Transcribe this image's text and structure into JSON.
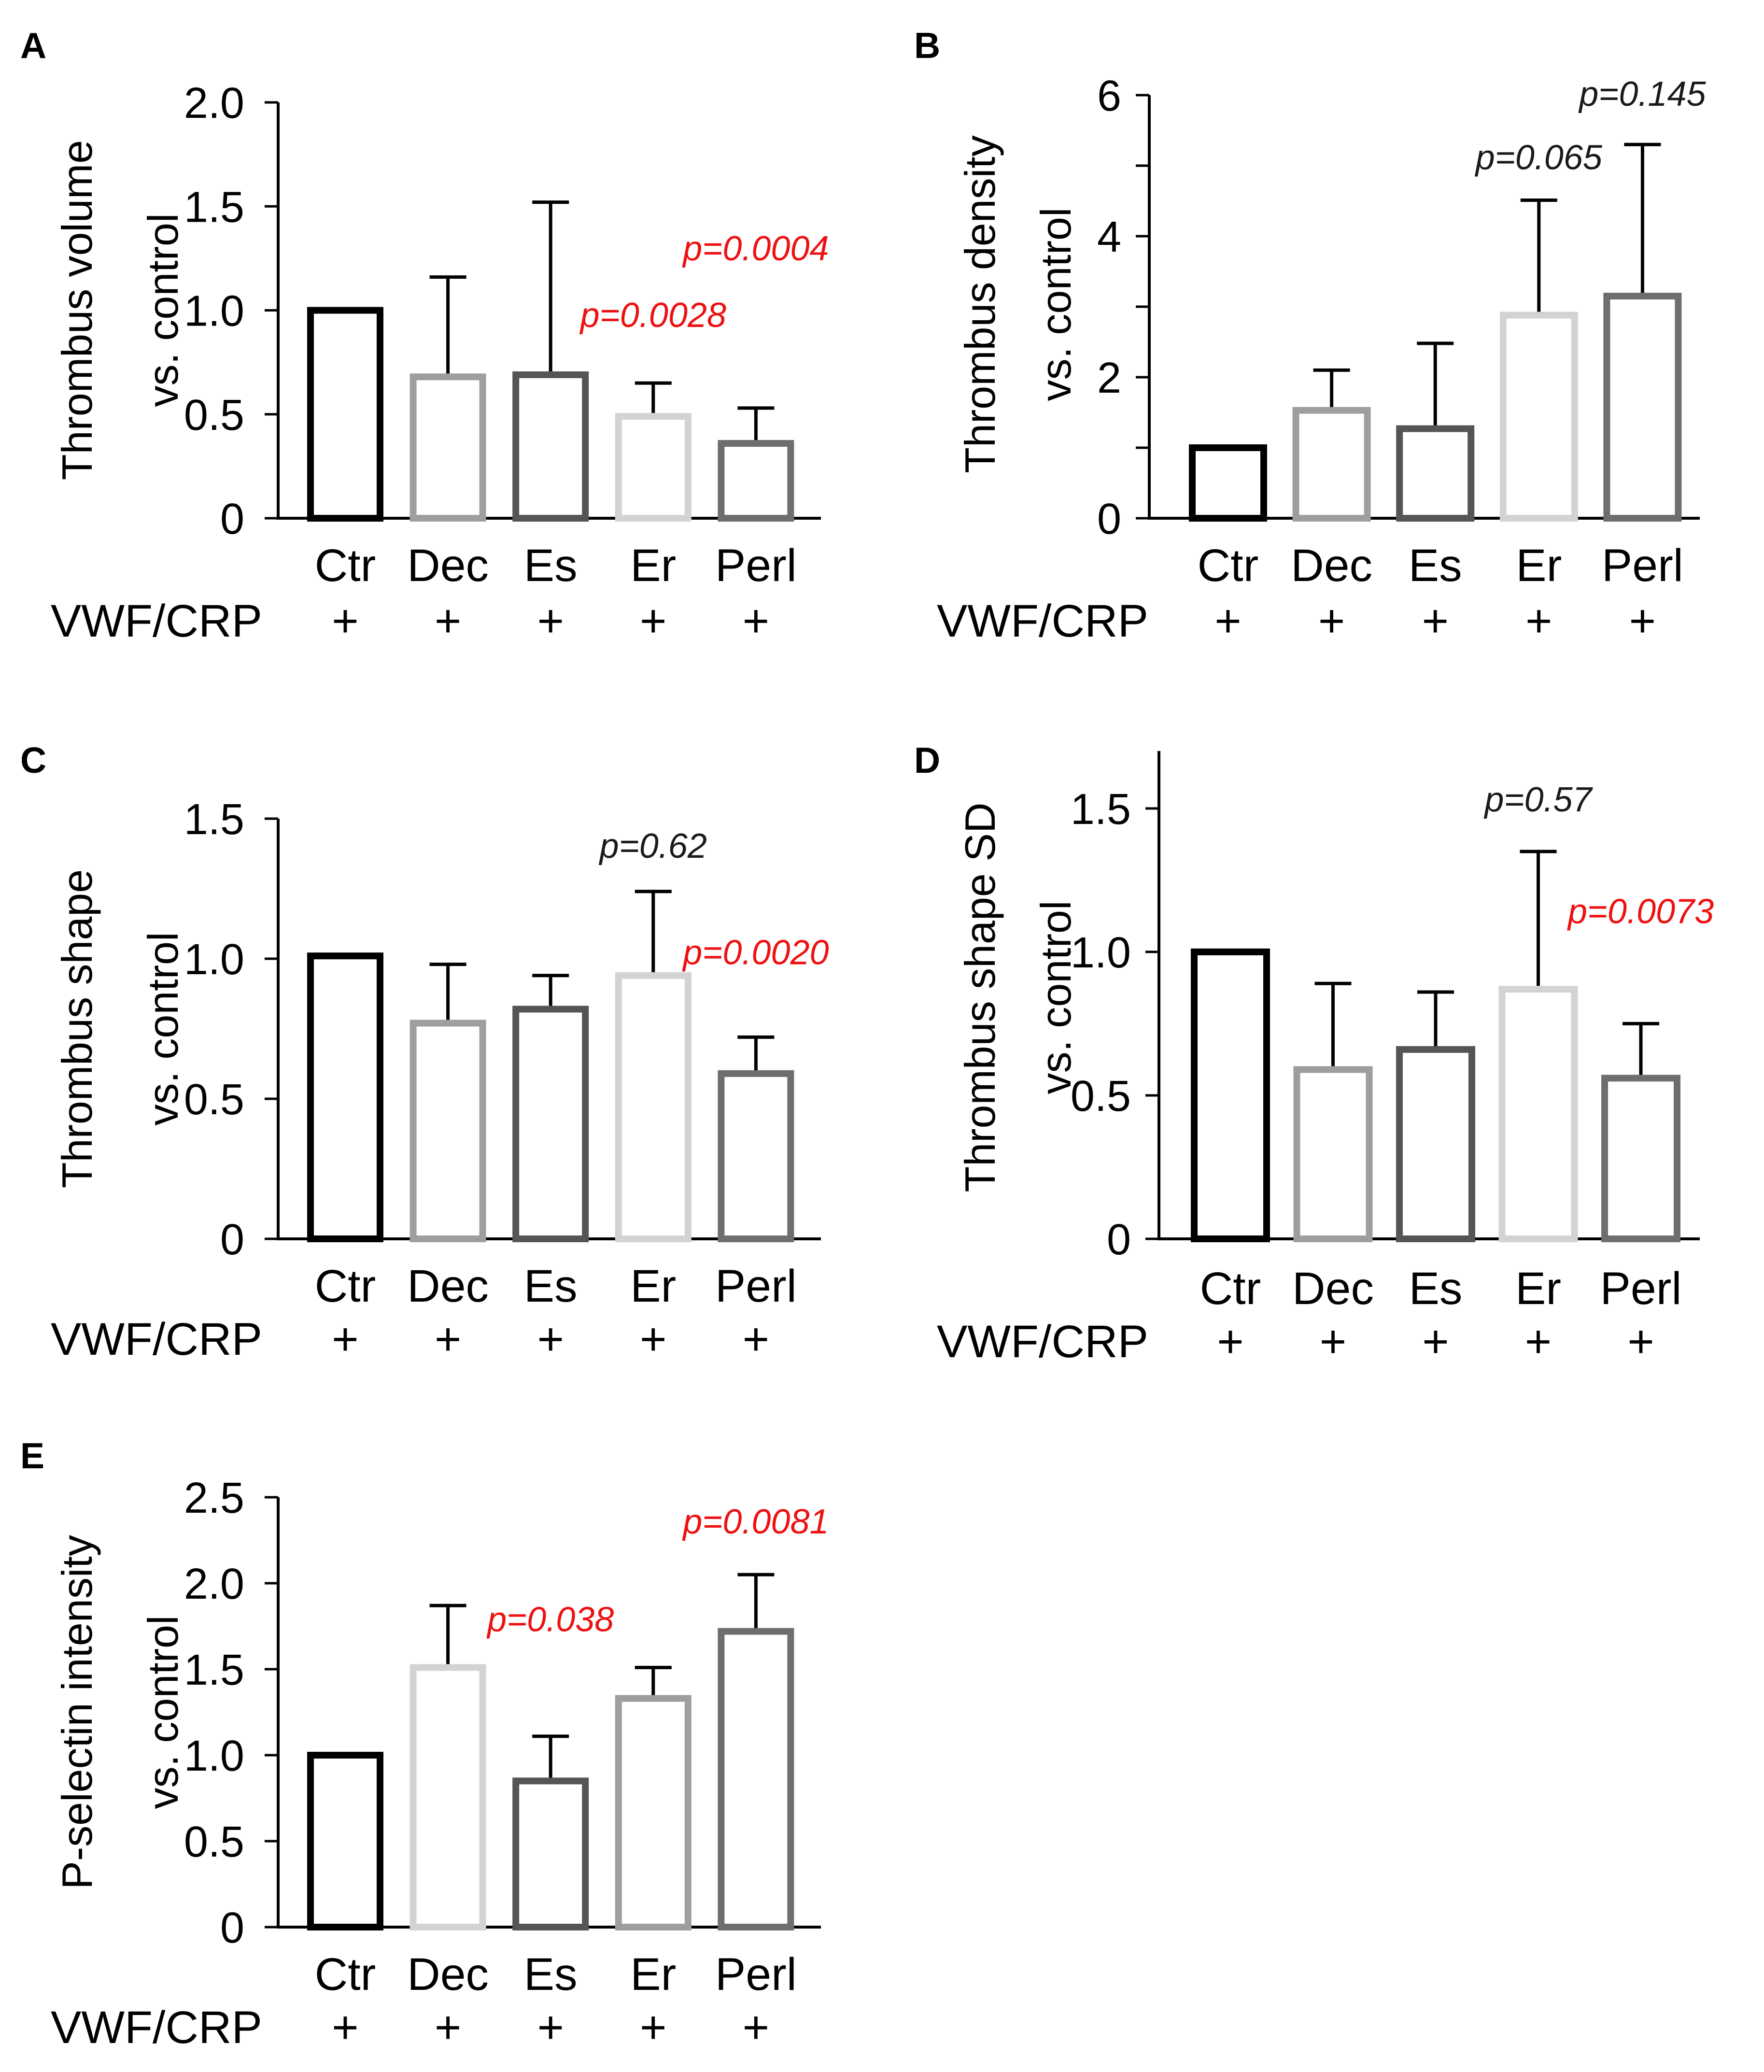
{
  "figure": {
    "treatment_label": "VWF/CRP",
    "treatment_mark": "+"
  },
  "chart_data": [
    {
      "panel": "A",
      "type": "bar",
      "ylabel": [
        "Thrombus volume",
        "vs. control"
      ],
      "categories": [
        "Ctr",
        "Dec",
        "Es",
        "Er",
        "Perl"
      ],
      "values": [
        1.0,
        0.68,
        0.69,
        0.49,
        0.36
      ],
      "errors": [
        0,
        0.48,
        0.83,
        0.16,
        0.17
      ],
      "ylim": [
        0,
        2.0
      ],
      "yticks": [
        0,
        0.5,
        1.0,
        1.5,
        2.0
      ],
      "ytick_labels": [
        "0",
        "0.5",
        "1.0",
        "1.5",
        "2.0"
      ],
      "bar_colors": [
        "#000000",
        "#9e9e9e",
        "#555555",
        "#d3d3d3",
        "#6e6e6e"
      ],
      "annotations": [
        {
          "text": "p=0.0028",
          "color": "#ee1111",
          "category": "Er",
          "y": 0.92
        },
        {
          "text": "p=0.0004",
          "color": "#ee1111",
          "category": "Perl",
          "y": 1.24
        }
      ]
    },
    {
      "panel": "B",
      "type": "bar",
      "ylabel": [
        "Thrombus density",
        "vs. control"
      ],
      "categories": [
        "Ctr",
        "Dec",
        "Es",
        "Er",
        "Perl"
      ],
      "values": [
        1.0,
        1.53,
        1.27,
        2.88,
        3.15
      ],
      "errors": [
        0,
        0.57,
        1.21,
        1.63,
        2.15
      ],
      "ylim": [
        0,
        6
      ],
      "yticks": [
        0,
        1,
        2,
        3,
        4,
        5,
        6
      ],
      "ytick_labels": [
        "0",
        "",
        "2",
        "",
        "4",
        "",
        "6"
      ],
      "bar_colors": [
        "#000000",
        "#9e9e9e",
        "#555555",
        "#d3d3d3",
        "#6e6e6e"
      ],
      "annotations": [
        {
          "text": "p=0.065",
          "color": "#1a1a1a",
          "category": "Er",
          "y": 4.95
        },
        {
          "text": "p=0.145",
          "color": "#1a1a1a",
          "category": "Perl",
          "y": 5.85
        }
      ]
    },
    {
      "panel": "C",
      "type": "bar",
      "ylabel": [
        "Thrombus shape",
        "vs. control"
      ],
      "categories": [
        "Ctr",
        "Dec",
        "Es",
        "Er",
        "Perl"
      ],
      "values": [
        1.01,
        0.77,
        0.82,
        0.94,
        0.59
      ],
      "errors": [
        0,
        0.21,
        0.12,
        0.3,
        0.13
      ],
      "ylim": [
        0,
        1.5
      ],
      "yticks": [
        0,
        0.5,
        1.0,
        1.5
      ],
      "ytick_labels": [
        "0",
        "0.5",
        "1.0",
        "1.5"
      ],
      "bar_colors": [
        "#000000",
        "#9e9e9e",
        "#555555",
        "#d3d3d3",
        "#6e6e6e"
      ],
      "annotations": [
        {
          "text": "p=0.62",
          "color": "#1a1a1a",
          "category": "Er",
          "y": 1.36
        },
        {
          "text": "p=0.0020",
          "color": "#ee1111",
          "category": "Perl",
          "y": 0.98
        }
      ]
    },
    {
      "panel": "D",
      "type": "bar",
      "ylabel": [
        "Thrombus shape SD",
        "vs. control"
      ],
      "categories": [
        "Ctr",
        "Dec",
        "Es",
        "Er",
        "Perl"
      ],
      "values": [
        1.0,
        0.59,
        0.66,
        0.87,
        0.56
      ],
      "errors": [
        0,
        0.3,
        0.2,
        0.48,
        0.19
      ],
      "ylim": [
        0,
        1.7
      ],
      "yticks": [
        0,
        0.5,
        1.0,
        1.5
      ],
      "ytick_labels": [
        "0",
        "0.5",
        "1.0",
        "1.5"
      ],
      "bar_colors": [
        "#000000",
        "#9e9e9e",
        "#555555",
        "#d3d3d3",
        "#6e6e6e"
      ],
      "annotations": [
        {
          "text": "p=0.57",
          "color": "#1a1a1a",
          "category": "Er",
          "y": 1.49
        },
        {
          "text": "p=0.0073",
          "color": "#ee1111",
          "category": "Perl",
          "y": 1.1
        }
      ]
    },
    {
      "panel": "E",
      "type": "bar",
      "ylabel": [
        "P-selectin intensity",
        "vs. control"
      ],
      "categories": [
        "Ctr",
        "Dec",
        "Es",
        "Er",
        "Perl"
      ],
      "values": [
        1.0,
        1.51,
        0.85,
        1.33,
        1.72
      ],
      "errors": [
        0,
        0.36,
        0.26,
        0.18,
        0.33
      ],
      "ylim": [
        0,
        2.5
      ],
      "yticks": [
        0,
        0.5,
        1.0,
        1.5,
        2.0,
        2.5
      ],
      "ytick_labels": [
        "0",
        "0.5",
        "1.0",
        "1.5",
        "2.0",
        "2.5"
      ],
      "bar_colors": [
        "#000000",
        "#d3d3d3",
        "#555555",
        "#9e9e9e",
        "#6e6e6e"
      ],
      "annotations": [
        {
          "text": "p=0.038",
          "color": "#ee1111",
          "category": "Es",
          "y": 1.72
        },
        {
          "text": "p=0.0081",
          "color": "#ee1111",
          "category": "Perl",
          "y": 2.29
        }
      ]
    }
  ]
}
